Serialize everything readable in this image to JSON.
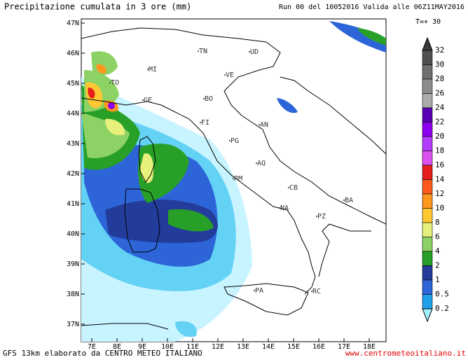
{
  "header": {
    "title": "Precipitazione cumulata in 3 ore (mm)",
    "run": "Run 00 del 10052016  Valida alle 06Z11MAY2016",
    "step": "T=+ 30"
  },
  "map": {
    "lat_labels": [
      "47N",
      "46N",
      "45N",
      "44N",
      "43N",
      "42N",
      "41N",
      "40N",
      "39N",
      "38N",
      "37N"
    ],
    "lon_labels": [
      "7E",
      "8E",
      "9E",
      "10E",
      "11E",
      "12E",
      "13E",
      "14E",
      "15E",
      "16E",
      "17E",
      "18E"
    ],
    "cities": [
      "TN",
      "UD",
      "MI",
      "VE",
      "TO",
      "BO",
      "GE",
      "FI",
      "AN",
      "PG",
      "AQ",
      "RM",
      "CB",
      "BA",
      "NA",
      "PZ",
      "PA",
      "RC"
    ]
  },
  "legend": {
    "labels": [
      "32",
      "30",
      "28",
      "26",
      "24",
      "22",
      "20",
      "18",
      "16",
      "14",
      "12",
      "10",
      "8",
      "6",
      "4",
      "2",
      "1",
      "0.5",
      "0.2"
    ],
    "colors": [
      "#3a3a3a",
      "#505050",
      "#6e6e6e",
      "#8c8c8c",
      "#aaaaaa",
      "#5a00b4",
      "#8c00f0",
      "#b43cff",
      "#dc50f0",
      "#e61e1e",
      "#ff5a1e",
      "#ff961e",
      "#ffc832",
      "#e6f07a",
      "#8cd264",
      "#28a028",
      "#233c9b",
      "#2d64d7",
      "#1ea0eb",
      "#a0f0ff"
    ]
  },
  "footer": {
    "source": "GFS 13km elaborato da CENTRO METEO ITALIANO",
    "site": "www.centrometeoitaliano.it"
  }
}
